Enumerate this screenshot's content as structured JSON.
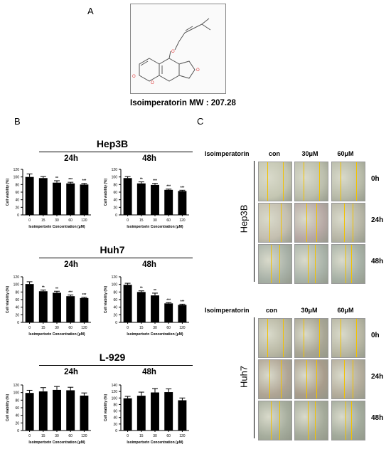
{
  "panels": {
    "a": "A",
    "b": "B",
    "c": "C"
  },
  "compound": {
    "caption": "Isoimperatorin  MW : 207.28"
  },
  "groups": [
    {
      "cell_line": "Hep3B",
      "time_labels": [
        "24h",
        "48h"
      ]
    },
    {
      "cell_line": "Huh7",
      "time_labels": [
        "24h",
        "48h"
      ]
    },
    {
      "cell_line": "L-929",
      "time_labels": [
        "24h",
        "48h"
      ]
    }
  ],
  "chart_data": [
    {
      "type": "bar",
      "title": "",
      "xlabel": "Isoimpertorin Concentration (μM)",
      "ylabel": "Cell viability (%)",
      "categories": [
        "0",
        "15",
        "30",
        "60",
        "120"
      ],
      "values": [
        100,
        97,
        85,
        83,
        80
      ],
      "errors": [
        8,
        4,
        5,
        3,
        3
      ],
      "significance": [
        "",
        "",
        "**",
        "***",
        "***"
      ],
      "ylim": [
        0,
        120
      ],
      "yticks": [
        0,
        20,
        40,
        60,
        80,
        100,
        120
      ],
      "panel": "Hep3B 24h"
    },
    {
      "type": "bar",
      "title": "",
      "xlabel": "Isoimpertorin Concentration (μM)",
      "ylabel": "Cell viability (%)",
      "categories": [
        "0",
        "15",
        "30",
        "60",
        "120"
      ],
      "values": [
        97,
        83,
        79,
        66,
        63
      ],
      "errors": [
        4,
        4,
        4,
        2,
        2
      ],
      "significance": [
        "",
        "**",
        "***",
        "***",
        "***"
      ],
      "ylim": [
        0,
        120
      ],
      "yticks": [
        0,
        20,
        40,
        60,
        80,
        100,
        120
      ],
      "panel": "Hep3B 48h"
    },
    {
      "type": "bar",
      "title": "",
      "xlabel": "Isoimpertorin Concentration (μM)",
      "ylabel": "Cell viability (%)",
      "categories": [
        "0",
        "15",
        "30",
        "60",
        "120"
      ],
      "values": [
        101,
        82,
        78,
        69,
        64
      ],
      "errors": [
        6,
        3,
        4,
        3,
        2
      ],
      "significance": [
        "",
        "**",
        "**",
        "***",
        "***"
      ],
      "ylim": [
        0,
        120
      ],
      "yticks": [
        0,
        20,
        40,
        60,
        80,
        100,
        120
      ],
      "panel": "Huh7 24h"
    },
    {
      "type": "bar",
      "title": "",
      "xlabel": "Isoimpertorin Concentration (μM)",
      "ylabel": "Cell viability (%)",
      "categories": [
        "0",
        "15",
        "30",
        "60",
        "120"
      ],
      "values": [
        99,
        80,
        71,
        50,
        46
      ],
      "errors": [
        4,
        3,
        6,
        2,
        2
      ],
      "significance": [
        "",
        "**",
        "**",
        "***",
        "***"
      ],
      "ylim": [
        0,
        120
      ],
      "yticks": [
        0,
        20,
        40,
        60,
        80,
        100,
        120
      ],
      "panel": "Huh7 48h"
    },
    {
      "type": "bar",
      "title": "",
      "xlabel": "Isoimpertorin Concentration (μM)",
      "ylabel": "Cell viability (%)",
      "categories": [
        "0",
        "15",
        "30",
        "60",
        "120"
      ],
      "values": [
        99,
        103,
        107,
        106,
        92
      ],
      "errors": [
        7,
        10,
        9,
        8,
        7
      ],
      "significance": [
        "",
        "",
        "",
        "",
        ""
      ],
      "ylim": [
        0,
        120
      ],
      "yticks": [
        0,
        20,
        40,
        60,
        80,
        100,
        120
      ],
      "panel": "L-929 24h"
    },
    {
      "type": "bar",
      "title": "",
      "xlabel": "Isoimpertorin Concentration (μM)",
      "ylabel": "Cell viability (%)",
      "categories": [
        "0",
        "15",
        "30",
        "60",
        "120"
      ],
      "values": [
        99,
        107,
        117,
        118,
        93
      ],
      "errors": [
        6,
        11,
        12,
        10,
        7
      ],
      "significance": [
        "",
        "",
        "",
        "",
        ""
      ],
      "ylim": [
        0,
        140
      ],
      "yticks": [
        0,
        20,
        40,
        60,
        80,
        100,
        120,
        140
      ],
      "panel": "L-929 48h"
    }
  ],
  "migration": {
    "treatment_label": "Isoimperatorin",
    "columns": [
      "con",
      "30μM",
      "60μM"
    ],
    "rows": [
      "0h",
      "24h",
      "48h"
    ],
    "cell_lines": [
      "Hep3B",
      "Huh7"
    ],
    "scratch_line_color": "#f2c200"
  }
}
